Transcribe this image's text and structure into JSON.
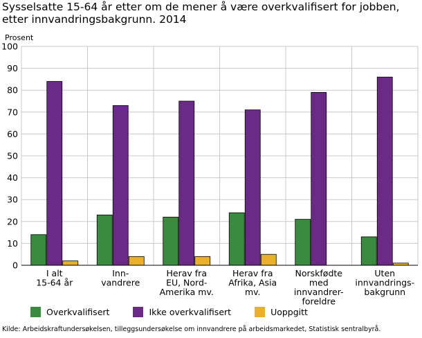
{
  "colors": {
    "background": "#ffffff",
    "gridline": "#c8c8c8",
    "axis": "#000000",
    "series": [
      "#3a8a3f",
      "#6c2a87",
      "#eab02b"
    ]
  },
  "chart_data": {
    "type": "bar",
    "title": "Sysselsatte 15-64 år etter om de mener å være overkvalifisert for jobben, etter innvandringsbakgrunn. 2014",
    "ylabel": "Prosent",
    "xlabel": "",
    "ylim": [
      0,
      100
    ],
    "yticks": [
      0,
      10,
      20,
      30,
      40,
      50,
      60,
      70,
      80,
      90,
      100
    ],
    "grid": true,
    "legend_position": "bottom",
    "categories": [
      [
        "I alt",
        "15-64 år"
      ],
      [
        "Inn-",
        "vandrere"
      ],
      [
        "Herav fra",
        "EU, Nord-",
        "Amerika mv."
      ],
      [
        "Herav fra",
        "Afrika, Asia",
        "mv."
      ],
      [
        "Norskfødte",
        "med",
        "innvandrer-",
        "foreldre"
      ],
      [
        "Uten",
        "innvandrings-",
        "bakgrunn"
      ]
    ],
    "series": [
      {
        "name": "Overkvalifisert",
        "values": [
          14,
          23,
          22,
          24,
          21,
          13
        ]
      },
      {
        "name": "Ikke overkvalifisert",
        "values": [
          84,
          73,
          75,
          71,
          79,
          86
        ]
      },
      {
        "name": "Uoppgitt",
        "values": [
          2,
          4,
          4,
          5,
          0,
          1
        ]
      }
    ]
  },
  "source": "Kilde: Arbeidskraftundersøkelsen, tilleggsundersøkelse om innvandrere på arbeidsmarkedet, Statistisk sentralbyrå."
}
